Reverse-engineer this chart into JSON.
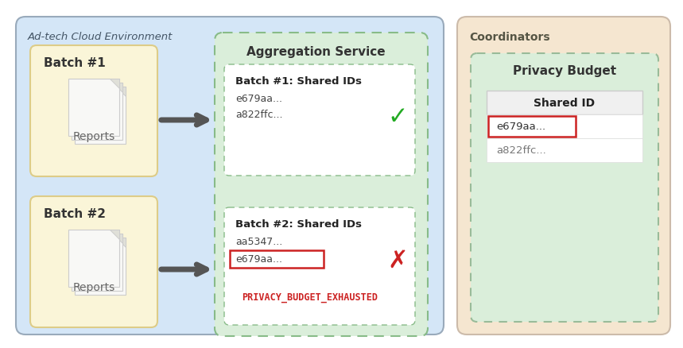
{
  "bg_color": "#ffffff",
  "adtech_bg": "#d4e6f7",
  "adtech_label": "Ad-tech Cloud Environment",
  "coordinators_bg": "#f5e6d0",
  "coordinators_label": "Coordinators",
  "agg_service_bg": "#daeeda",
  "agg_service_label": "Aggregation Service",
  "privacy_budget_bg": "#daeeda",
  "privacy_budget_label": "Privacy Budget",
  "batch1_label": "Batch #1",
  "batch2_label": "Batch #2",
  "reports_label": "Reports",
  "batch1_box_title": "Batch #1: Shared IDs",
  "batch1_ids": [
    "e679aa...",
    "a822ffc..."
  ],
  "batch2_box_title": "Batch #2: Shared IDs",
  "batch2_ids": [
    "aa5347...",
    "e679aa..."
  ],
  "shared_id_header": "Shared ID",
  "coord_ids": [
    "e679aa...",
    "a822ffc..."
  ],
  "error_label": "PRIVACY_BUDGET_EXHAUSTED",
  "reports_box_bg": "#faf5d8",
  "reports_paper_bg": "#f5f5f5",
  "arrow_color": "#555555",
  "check_color": "#22aa22",
  "cross_color": "#cc2222",
  "highlight_border": "#cc2222",
  "table_header_bg": "#f0f0f0",
  "table_row_bg": "#ffffff",
  "inner_box_bg": "#ffffff",
  "dashed_green": "#88bb88",
  "dashed_coord": "#99bb99"
}
